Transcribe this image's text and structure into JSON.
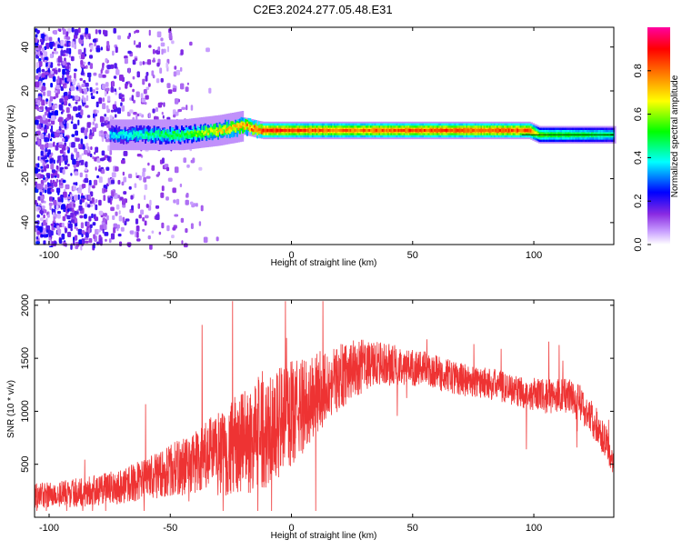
{
  "title": "C2E3.2024.277.05.48.E31",
  "chart_data": [
    {
      "type": "heatmap",
      "xlabel": "Height of straight line (km)",
      "ylabel": "Frequency (Hz)",
      "xlim": [
        -106,
        133
      ],
      "ylim": [
        -50,
        49
      ],
      "xticks": [
        -100,
        -50,
        0,
        50,
        100
      ],
      "yticks": [
        -40,
        -20,
        0,
        20,
        40
      ],
      "colorbar": {
        "label": "Normalized spectral amplitude",
        "range": [
          0,
          1
        ],
        "ticks": [
          "0.0",
          "0.2",
          "0.4",
          "0.6",
          "0.8"
        ],
        "colors": [
          "#ffffff",
          "#9b30ff",
          "#0000ff",
          "#00ffff",
          "#00ff00",
          "#ffff00",
          "#ff7f00",
          "#ff0000",
          "#ff00a0"
        ]
      },
      "ridge": {
        "x": [
          -75,
          -60,
          -45,
          -30,
          -20,
          -12,
          0,
          20,
          50,
          80,
          98,
          102,
          133
        ],
        "frequency": [
          0,
          0,
          0,
          2,
          4,
          2,
          2,
          2,
          2,
          2,
          2,
          0,
          0
        ],
        "peak_amplitude": [
          0.4,
          0.5,
          0.55,
          0.75,
          0.8,
          0.95,
          0.9,
          0.85,
          0.9,
          0.9,
          0.9,
          0.6,
          0.5
        ]
      },
      "noise_region_x": [
        -106,
        -40
      ]
    },
    {
      "type": "line",
      "xlabel": "Height of straight line (km)",
      "ylabel": "SNR (10 * v/v)",
      "xlim": [
        -106,
        133
      ],
      "ylim": [
        0,
        2050
      ],
      "xticks": [
        -100,
        -50,
        0,
        50,
        100
      ],
      "yticks": [
        500,
        1000,
        1500,
        2000
      ],
      "color": "#ee3333",
      "series": [
        {
          "x": [
            -106,
            -95,
            -85,
            -75,
            -65,
            -55,
            -45,
            -35,
            -25,
            -15,
            -5,
            5,
            15,
            25,
            35,
            45,
            55,
            65,
            75,
            85,
            95,
            105,
            115,
            120,
            125,
            130,
            133
          ],
          "values": [
            200,
            220,
            240,
            270,
            330,
            400,
            480,
            560,
            650,
            760,
            900,
            1050,
            1250,
            1400,
            1450,
            1430,
            1400,
            1330,
            1280,
            1250,
            1180,
            1140,
            1150,
            1050,
            900,
            700,
            500
          ],
          "noise_amplitude": [
            120,
            130,
            140,
            160,
            180,
            220,
            280,
            350,
            450,
            550,
            550,
            450,
            350,
            280,
            220,
            180,
            170,
            160,
            150,
            150,
            150,
            160,
            180,
            180,
            170,
            150,
            120
          ]
        }
      ]
    }
  ]
}
